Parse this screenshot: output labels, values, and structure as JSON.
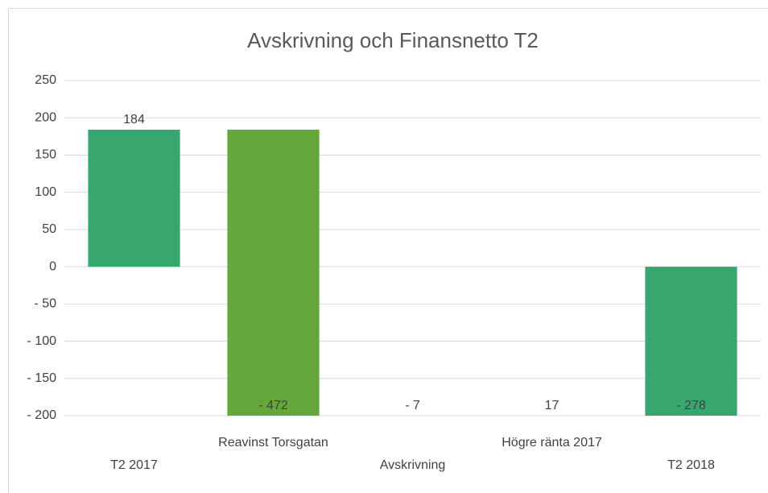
{
  "chart_data": {
    "type": "waterfall",
    "title": "Avskrivning och Finansnetto T2",
    "categories": [
      "T2 2017",
      "Reavinst Torsgatan",
      "Avskrivning",
      "Högre ränta 2017",
      "T2 2018"
    ],
    "values": [
      184,
      -472,
      -7,
      17,
      -278
    ],
    "value_labels": [
      "184",
      "- 472",
      "- 7",
      "17",
      "- 278"
    ],
    "colors": [
      "#37a76f",
      "#66a73b",
      "#66a73b",
      "#66a73b",
      "#37a76f"
    ],
    "ylim": [
      -200,
      250
    ],
    "yticks": [
      {
        "value": -200,
        "label": "- 200"
      },
      {
        "value": -150,
        "label": "- 150"
      },
      {
        "value": -100,
        "label": "- 100"
      },
      {
        "value": -50,
        "label": "- 50"
      },
      0,
      50,
      100,
      150,
      200,
      250
    ],
    "grid": true
  }
}
